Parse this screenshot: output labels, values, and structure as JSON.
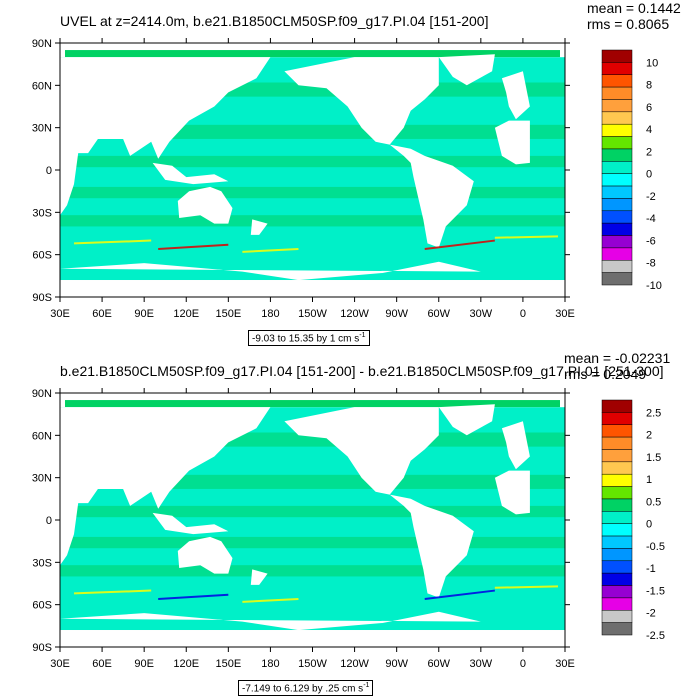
{
  "panels": [
    {
      "title": "UVEL at z=2414.0m, b.e21.B1850CLM50SP.f09_g17.PI.04 [151-200]",
      "mean_label": "mean = 0.1442",
      "rms_label": "rms = 0.8065",
      "range_label": "-9.03 to 15.35 by 1 cm s",
      "range_sup": "-1",
      "colorbar_labels": [
        "10",
        "8",
        "6",
        "4",
        "2",
        "0",
        "-2",
        "-4",
        "-6",
        "-8",
        "-10"
      ],
      "colorbar_colors": [
        "#a00000",
        "#e00000",
        "#ff5500",
        "#ff8c28",
        "#ffa03c",
        "#ffc850",
        "#ffff00",
        "#64e600",
        "#00d264",
        "#00f0c8",
        "#00ffff",
        "#00c8ff",
        "#0096ff",
        "#0050ff",
        "#0000e6",
        "#9600d2",
        "#e600e6",
        "#c8c8c8",
        "#6e6e6e"
      ]
    },
    {
      "title": "b.e21.B1850CLM50SP.f09_g17.PI.04 [151-200] - b.e21.B1850CLM50SP.f09_g17.PI.01 [251-300]",
      "mean_label": "mean = -0.02231",
      "rms_label": "rms = 0.2049",
      "range_label": "-7.149 to 6.129 by .25 cm s",
      "range_sup": "-1",
      "colorbar_labels": [
        "2.5",
        "2",
        "1.5",
        "1",
        "0.5",
        "0",
        "-0.5",
        "-1",
        "-1.5",
        "-2",
        "-2.5"
      ],
      "colorbar_colors": [
        "#a00000",
        "#e00000",
        "#ff5500",
        "#ff8c28",
        "#ffa03c",
        "#ffc850",
        "#ffff00",
        "#64e600",
        "#00d264",
        "#00f0c8",
        "#00ffff",
        "#00c8ff",
        "#0096ff",
        "#0050ff",
        "#0000e6",
        "#9600d2",
        "#e600e6",
        "#c8c8c8",
        "#6e6e6e"
      ]
    }
  ],
  "axes": {
    "lat_labels": [
      "90N",
      "60N",
      "30N",
      "0",
      "30S",
      "60S",
      "90S"
    ],
    "lon_labels": [
      "30E",
      "60E",
      "90E",
      "120E",
      "150E",
      "180",
      "150W",
      "120W",
      "90W",
      "60W",
      "30W",
      "0",
      "30E"
    ]
  },
  "colors": {
    "ocean_main": "#00f0c8",
    "ocean_band": "#00d264",
    "land": "#ffffff",
    "jet_yellow": "#ffff00",
    "jet_red": "#e00000",
    "jet_blue": "#0000e6"
  }
}
